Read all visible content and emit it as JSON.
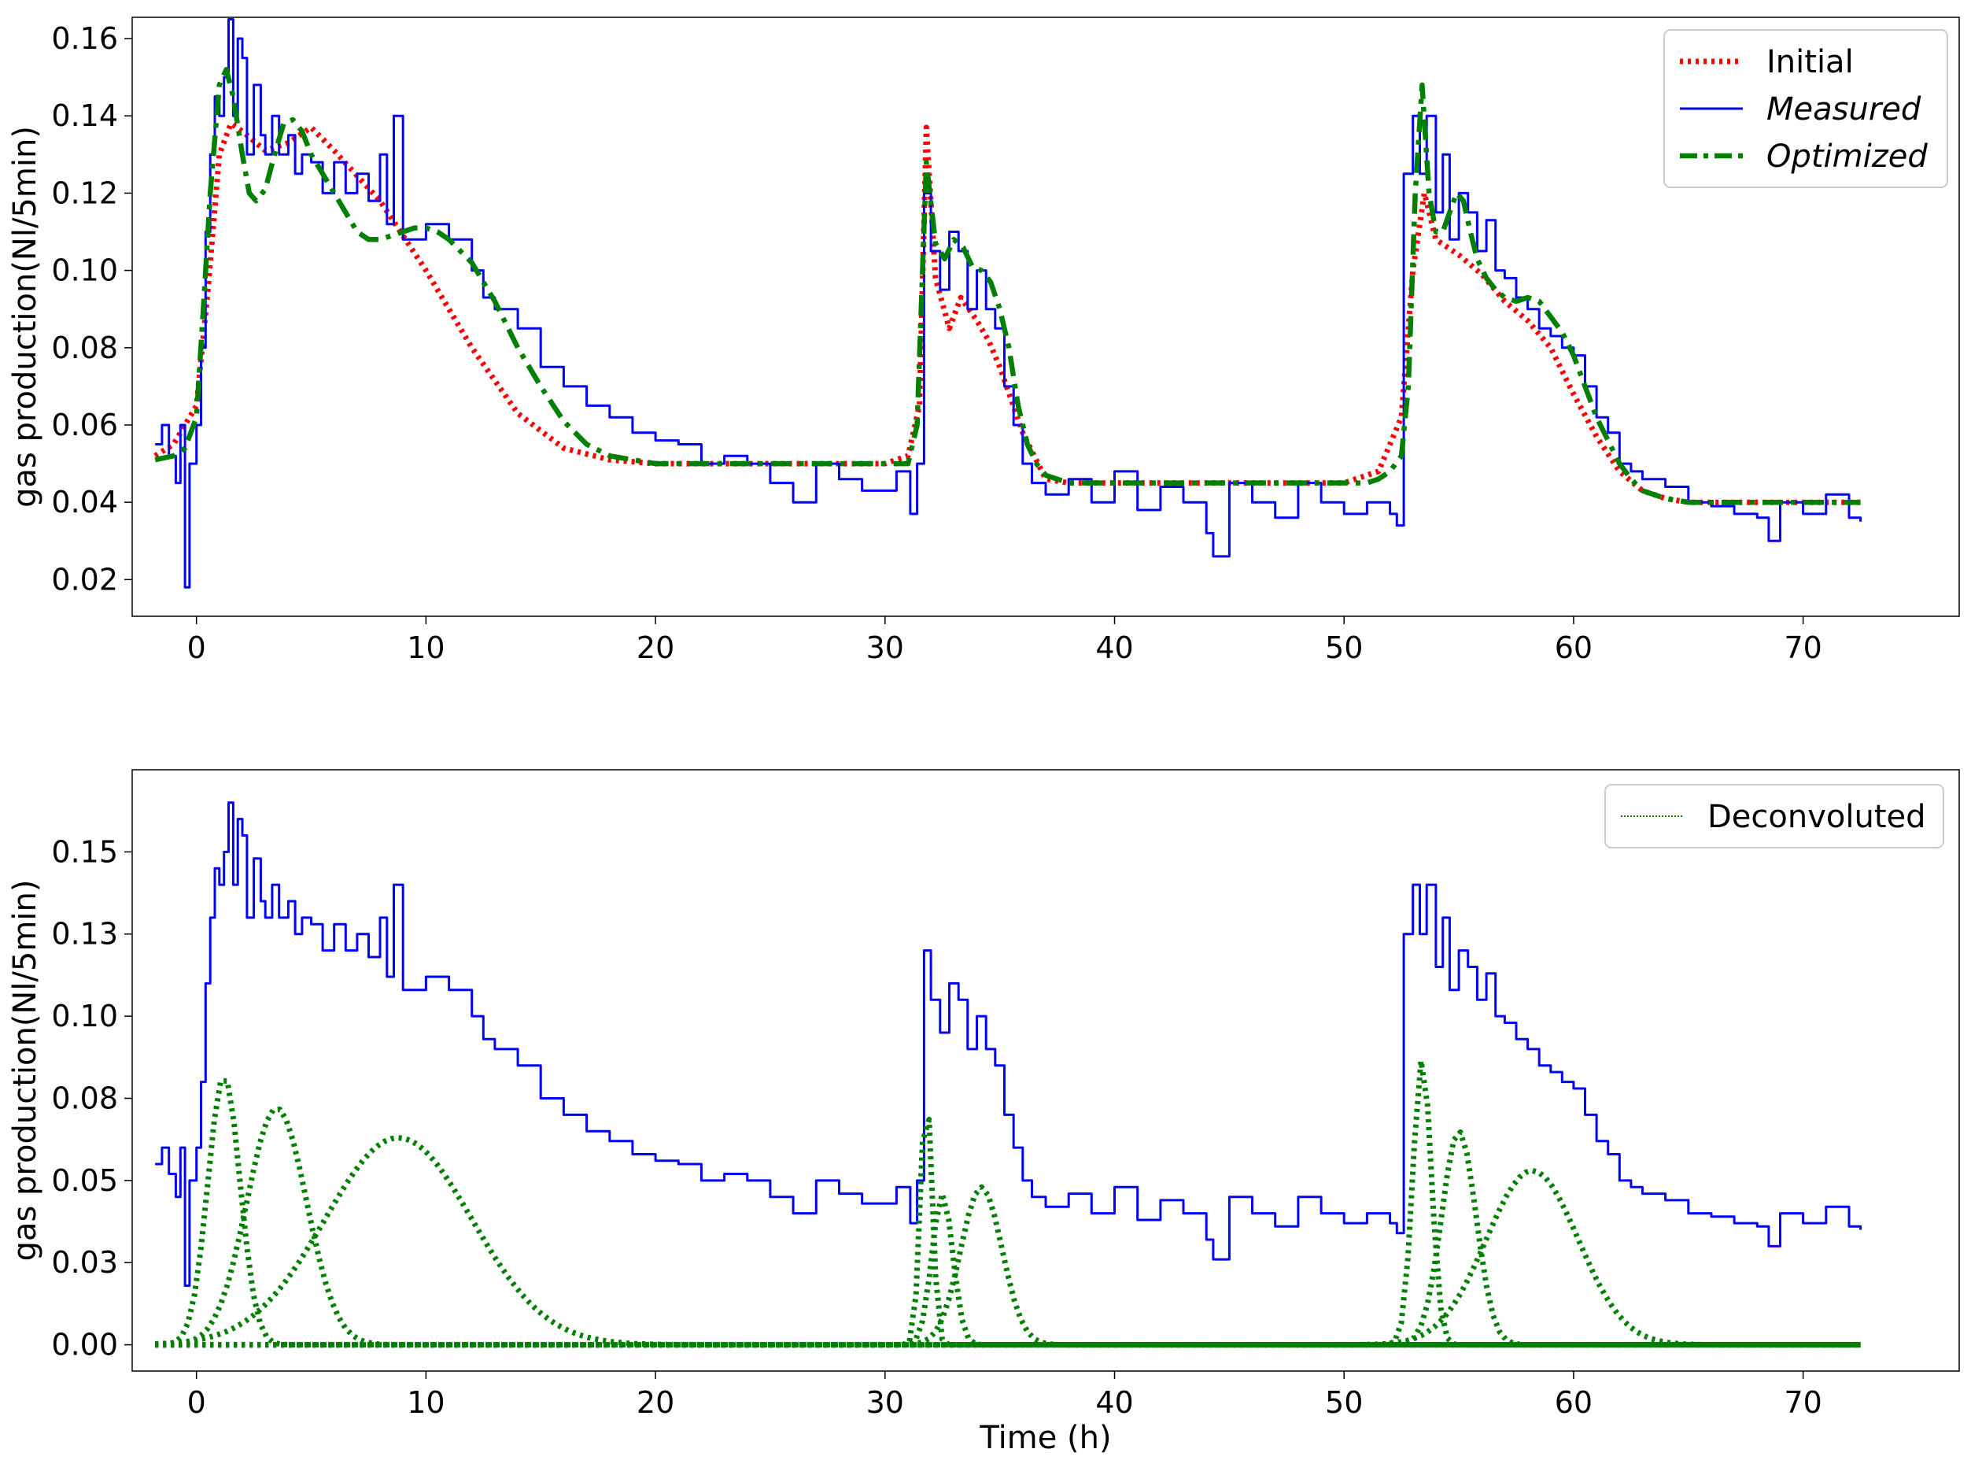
{
  "chart_data": [
    {
      "id": "top",
      "type": "line",
      "title": "",
      "xlabel": "",
      "ylabel": "gas production(Nl/5min)",
      "xlim": [
        -2.8,
        76.8
      ],
      "ylim": [
        0.0105,
        0.1655
      ],
      "xticks": [
        0,
        10,
        20,
        30,
        40,
        50,
        60,
        70
      ],
      "xtick_labels": [
        "0",
        "10",
        "20",
        "30",
        "40",
        "50",
        "60",
        "70"
      ],
      "yticks": [
        0.02,
        0.04,
        0.06,
        0.08,
        0.1,
        0.12,
        0.14,
        0.16
      ],
      "ytick_labels": [
        "0.02",
        "0.04",
        "0.06",
        "0.08",
        "0.10",
        "0.12",
        "0.14",
        "0.16"
      ],
      "legend": {
        "position": "top-right",
        "entries": [
          {
            "label": "Initial",
            "italic": false
          },
          {
            "label": "Measured",
            "italic": true
          },
          {
            "label": "Optimized",
            "italic": true
          }
        ]
      },
      "series": [
        {
          "name": "Initial",
          "color": "#ff0000",
          "style": "dotted",
          "x": [
            -1.8,
            -1,
            0,
            0.5,
            1,
            1.5,
            2,
            3,
            4,
            5,
            6,
            8,
            10,
            12,
            14,
            16,
            18,
            20,
            25,
            30,
            31,
            31.5,
            31.8,
            32.2,
            32.8,
            33.3,
            34,
            34.5,
            35,
            36,
            37,
            38,
            40,
            45,
            50,
            51.5,
            52.5,
            53,
            53.5,
            54,
            54.5,
            55,
            56,
            57,
            58,
            59,
            60,
            61,
            62,
            63,
            64,
            65,
            68,
            72.5
          ],
          "y": [
            0.052,
            0.055,
            0.065,
            0.095,
            0.13,
            0.138,
            0.136,
            0.131,
            0.133,
            0.137,
            0.131,
            0.118,
            0.1,
            0.08,
            0.063,
            0.054,
            0.051,
            0.05,
            0.05,
            0.05,
            0.052,
            0.065,
            0.137,
            0.098,
            0.085,
            0.093,
            0.087,
            0.082,
            0.075,
            0.058,
            0.046,
            0.045,
            0.045,
            0.045,
            0.045,
            0.048,
            0.062,
            0.1,
            0.12,
            0.108,
            0.106,
            0.104,
            0.099,
            0.092,
            0.087,
            0.08,
            0.068,
            0.057,
            0.048,
            0.043,
            0.041,
            0.04,
            0.04,
            0.04
          ]
        },
        {
          "name": "Measured",
          "color": "#0000ff",
          "style": "solid",
          "x": [
            -1.8,
            -1.5,
            -1.2,
            -0.9,
            -0.7,
            -0.5,
            -0.3,
            0,
            0.2,
            0.4,
            0.6,
            0.8,
            1.0,
            1.2,
            1.4,
            1.6,
            1.8,
            2.0,
            2.2,
            2.5,
            2.8,
            3.0,
            3.3,
            3.6,
            4,
            4.3,
            4.6,
            5,
            5.5,
            6,
            6.5,
            7,
            7.5,
            8,
            8.3,
            8.6,
            9,
            10,
            11,
            12,
            12.5,
            13,
            14,
            15,
            16,
            17,
            18,
            19,
            20,
            21,
            22,
            23,
            24,
            25,
            26,
            27,
            28,
            29,
            30,
            30.5,
            31.1,
            31.4,
            31.7,
            32,
            32.4,
            32.8,
            33.2,
            33.6,
            34,
            34.4,
            34.8,
            35.2,
            35.6,
            36,
            36.4,
            37,
            38,
            39,
            40,
            41,
            42,
            43,
            44,
            44.3,
            45,
            46,
            47,
            48,
            49,
            50,
            51,
            52,
            52.3,
            52.6,
            53,
            53.3,
            53.6,
            54,
            54.3,
            54.6,
            55,
            55.4,
            55.8,
            56.2,
            56.6,
            57,
            57.5,
            58,
            58.5,
            59,
            59.5,
            60,
            60.5,
            61,
            61.5,
            62,
            62.5,
            63,
            64,
            65,
            66,
            67,
            68,
            68.5,
            69,
            70,
            71,
            72,
            72.5
          ],
          "y": [
            0.055,
            0.06,
            0.052,
            0.045,
            0.06,
            0.018,
            0.05,
            0.06,
            0.08,
            0.11,
            0.13,
            0.145,
            0.14,
            0.15,
            0.165,
            0.14,
            0.16,
            0.155,
            0.13,
            0.148,
            0.135,
            0.13,
            0.14,
            0.13,
            0.135,
            0.125,
            0.13,
            0.128,
            0.12,
            0.128,
            0.12,
            0.125,
            0.118,
            0.13,
            0.112,
            0.14,
            0.108,
            0.112,
            0.108,
            0.1,
            0.093,
            0.09,
            0.085,
            0.075,
            0.07,
            0.065,
            0.062,
            0.058,
            0.056,
            0.055,
            0.05,
            0.052,
            0.05,
            0.045,
            0.04,
            0.05,
            0.046,
            0.043,
            0.043,
            0.048,
            0.037,
            0.05,
            0.12,
            0.105,
            0.095,
            0.11,
            0.105,
            0.09,
            0.1,
            0.09,
            0.085,
            0.07,
            0.06,
            0.05,
            0.045,
            0.042,
            0.046,
            0.04,
            0.048,
            0.038,
            0.044,
            0.04,
            0.032,
            0.026,
            0.045,
            0.04,
            0.036,
            0.045,
            0.04,
            0.037,
            0.04,
            0.037,
            0.034,
            0.125,
            0.14,
            0.125,
            0.14,
            0.115,
            0.13,
            0.108,
            0.12,
            0.115,
            0.105,
            0.113,
            0.1,
            0.098,
            0.093,
            0.09,
            0.085,
            0.083,
            0.08,
            0.078,
            0.07,
            0.062,
            0.058,
            0.05,
            0.048,
            0.046,
            0.044,
            0.04,
            0.039,
            0.037,
            0.036,
            0.03,
            0.04,
            0.037,
            0.042,
            0.036,
            0.035
          ]
        },
        {
          "name": "Optimized",
          "color": "#008000",
          "style": "dashdot",
          "x": [
            -1.8,
            -1,
            -0.5,
            0,
            0.3,
            0.6,
            1,
            1.3,
            1.6,
            2,
            2.3,
            2.6,
            3,
            3.4,
            3.8,
            4.2,
            4.6,
            5,
            5.5,
            6,
            6.5,
            7,
            7.5,
            8,
            8.5,
            9,
            9.5,
            10,
            10.5,
            11,
            12,
            13,
            14,
            15,
            16,
            17,
            18,
            20,
            25,
            30,
            31,
            31.4,
            31.8,
            32.2,
            32.6,
            33,
            33.4,
            33.8,
            34.2,
            34.6,
            35,
            35.4,
            35.8,
            36.2,
            36.6,
            37,
            38,
            40,
            45,
            50,
            51,
            51.5,
            52,
            52.5,
            52.8,
            53.1,
            53.4,
            53.7,
            54,
            54.3,
            54.6,
            54.9,
            55.2,
            55.5,
            55.8,
            56.2,
            56.6,
            57,
            57.5,
            58,
            58.5,
            59,
            59.5,
            60,
            60.5,
            61,
            61.5,
            62,
            62.5,
            63,
            64,
            65,
            67,
            72.5
          ],
          "y": [
            0.051,
            0.052,
            0.054,
            0.062,
            0.09,
            0.12,
            0.148,
            0.152,
            0.145,
            0.13,
            0.12,
            0.118,
            0.121,
            0.13,
            0.138,
            0.139,
            0.136,
            0.13,
            0.125,
            0.12,
            0.115,
            0.11,
            0.108,
            0.108,
            0.109,
            0.11,
            0.111,
            0.111,
            0.11,
            0.108,
            0.102,
            0.092,
            0.08,
            0.07,
            0.061,
            0.055,
            0.052,
            0.05,
            0.05,
            0.05,
            0.05,
            0.06,
            0.128,
            0.107,
            0.103,
            0.108,
            0.106,
            0.101,
            0.1,
            0.097,
            0.09,
            0.08,
            0.065,
            0.055,
            0.05,
            0.047,
            0.045,
            0.045,
            0.045,
            0.045,
            0.045,
            0.046,
            0.048,
            0.052,
            0.07,
            0.12,
            0.148,
            0.12,
            0.11,
            0.11,
            0.115,
            0.12,
            0.118,
            0.11,
            0.103,
            0.098,
            0.095,
            0.093,
            0.092,
            0.093,
            0.092,
            0.088,
            0.084,
            0.078,
            0.07,
            0.062,
            0.056,
            0.05,
            0.046,
            0.043,
            0.041,
            0.04,
            0.04,
            0.04
          ]
        }
      ]
    },
    {
      "id": "bottom",
      "type": "line",
      "title": "",
      "xlabel": "Time (h)",
      "ylabel": "gas production(Nl/5min)",
      "xlim": [
        -2.8,
        76.8
      ],
      "ylim": [
        -0.008,
        0.175
      ],
      "xticks": [
        0,
        10,
        20,
        30,
        40,
        50,
        60,
        70
      ],
      "xtick_labels": [
        "0",
        "10",
        "20",
        "30",
        "40",
        "50",
        "60",
        "70"
      ],
      "yticks": [
        0.0,
        0.025,
        0.05,
        0.075,
        0.1,
        0.125,
        0.15
      ],
      "ytick_labels": [
        "0.00",
        "0.03",
        "0.05",
        "0.08",
        "0.10",
        "0.13",
        "0.15"
      ],
      "legend": {
        "position": "top-right",
        "entries": [
          {
            "label": "Deconvoluted",
            "italic": false
          }
        ]
      },
      "series": [
        {
          "name": "Measured",
          "color": "#0000ff",
          "style": "solid",
          "in_legend": false,
          "x": [
            -1.8,
            -1.5,
            -1.2,
            -0.9,
            -0.7,
            -0.5,
            -0.3,
            0,
            0.2,
            0.4,
            0.6,
            0.8,
            1.0,
            1.2,
            1.4,
            1.6,
            1.8,
            2.0,
            2.2,
            2.5,
            2.8,
            3.0,
            3.3,
            3.6,
            4,
            4.3,
            4.6,
            5,
            5.5,
            6,
            6.5,
            7,
            7.5,
            8,
            8.3,
            8.6,
            9,
            10,
            11,
            12,
            12.5,
            13,
            14,
            15,
            16,
            17,
            18,
            19,
            20,
            21,
            22,
            23,
            24,
            25,
            26,
            27,
            28,
            29,
            30,
            30.5,
            31.1,
            31.4,
            31.7,
            32,
            32.4,
            32.8,
            33.2,
            33.6,
            34,
            34.4,
            34.8,
            35.2,
            35.6,
            36,
            36.4,
            37,
            38,
            39,
            40,
            41,
            42,
            43,
            44,
            44.3,
            45,
            46,
            47,
            48,
            49,
            50,
            51,
            52,
            52.3,
            52.6,
            53,
            53.3,
            53.6,
            54,
            54.3,
            54.6,
            55,
            55.4,
            55.8,
            56.2,
            56.6,
            57,
            57.5,
            58,
            58.5,
            59,
            59.5,
            60,
            60.5,
            61,
            61.5,
            62,
            62.5,
            63,
            64,
            65,
            66,
            67,
            68,
            68.5,
            69,
            70,
            71,
            72,
            72.5
          ],
          "y": [
            0.055,
            0.06,
            0.052,
            0.045,
            0.06,
            0.018,
            0.05,
            0.06,
            0.08,
            0.11,
            0.13,
            0.145,
            0.14,
            0.15,
            0.165,
            0.14,
            0.16,
            0.155,
            0.13,
            0.148,
            0.135,
            0.13,
            0.14,
            0.13,
            0.135,
            0.125,
            0.13,
            0.128,
            0.12,
            0.128,
            0.12,
            0.125,
            0.118,
            0.13,
            0.112,
            0.14,
            0.108,
            0.112,
            0.108,
            0.1,
            0.093,
            0.09,
            0.085,
            0.075,
            0.07,
            0.065,
            0.062,
            0.058,
            0.056,
            0.055,
            0.05,
            0.052,
            0.05,
            0.045,
            0.04,
            0.05,
            0.046,
            0.043,
            0.043,
            0.048,
            0.037,
            0.05,
            0.12,
            0.105,
            0.095,
            0.11,
            0.105,
            0.09,
            0.1,
            0.09,
            0.085,
            0.07,
            0.06,
            0.05,
            0.045,
            0.042,
            0.046,
            0.04,
            0.048,
            0.038,
            0.044,
            0.04,
            0.032,
            0.026,
            0.045,
            0.04,
            0.036,
            0.045,
            0.04,
            0.037,
            0.04,
            0.037,
            0.034,
            0.125,
            0.14,
            0.125,
            0.14,
            0.115,
            0.13,
            0.108,
            0.12,
            0.115,
            0.105,
            0.113,
            0.1,
            0.098,
            0.093,
            0.09,
            0.085,
            0.083,
            0.08,
            0.078,
            0.07,
            0.062,
            0.058,
            0.05,
            0.048,
            0.046,
            0.044,
            0.04,
            0.039,
            0.037,
            0.036,
            0.03,
            0.04,
            0.037,
            0.042,
            0.036,
            0.035
          ]
        },
        {
          "name": "Deconvoluted",
          "color": "#008000",
          "style": "dotted",
          "gaussian_peaks": [
            {
              "center": 1.2,
              "amplitude": 0.082,
              "sigma": 0.7
            },
            {
              "center": 3.5,
              "amplitude": 0.072,
              "sigma": 1.3
            },
            {
              "center": 8.8,
              "amplitude": 0.063,
              "sigma": 3.2
            },
            {
              "center": 31.8,
              "amplitude": 0.077,
              "sigma": 0.25
            },
            {
              "center": 32.5,
              "amplitude": 0.046,
              "sigma": 0.45
            },
            {
              "center": 34.2,
              "amplitude": 0.048,
              "sigma": 0.9
            },
            {
              "center": 53.4,
              "amplitude": 0.087,
              "sigma": 0.4
            },
            {
              "center": 55.0,
              "amplitude": 0.065,
              "sigma": 0.75
            },
            {
              "center": 58.2,
              "amplitude": 0.053,
              "sigma": 2.0
            }
          ]
        }
      ]
    }
  ]
}
